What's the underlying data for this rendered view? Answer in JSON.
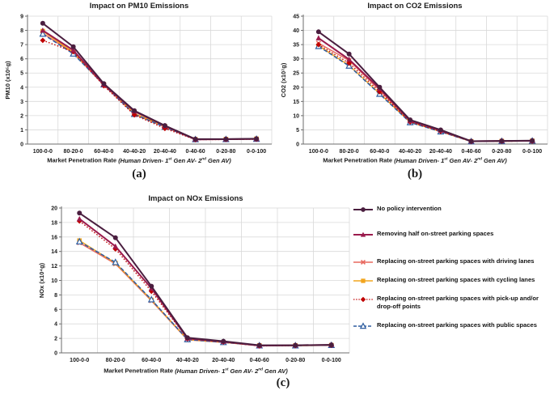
{
  "figure": {
    "captions": {
      "a": "(a)",
      "b": "(b)",
      "c": "(c)"
    }
  },
  "colors": {
    "grid": "#D9D9D9",
    "axis": "#6E6E6E",
    "text": "#1A1A1A",
    "no_policy": "#4A1E3F",
    "removing_half": "#9B1B4D",
    "driving_lanes": "#E8695F",
    "cycling_lanes": "#F2A51E",
    "pickup_dropoff": "#C00000",
    "public_spaces": "#2E5DA0"
  },
  "series_styles": {
    "no_policy": {
      "color": "#4A1E3F",
      "marker": "circle",
      "line": "solid",
      "width": 2.0
    },
    "removing_half": {
      "color": "#9B1B4D",
      "marker": "triangle",
      "line": "solid",
      "width": 2.0
    },
    "driving_lanes": {
      "color": "#E8695F",
      "marker": "x",
      "line": "solid",
      "width": 1.5
    },
    "cycling_lanes": {
      "color": "#F2A51E",
      "marker": "square",
      "line": "solid",
      "width": 1.5
    },
    "pickup_dropoff": {
      "color": "#C00000",
      "marker": "diamond",
      "line": "dotted",
      "width": 1.3
    },
    "public_spaces": {
      "color": "#2E5DA0",
      "marker": "triangle-open",
      "line": "dashed",
      "width": 1.5
    }
  },
  "legend": {
    "items": [
      {
        "key": "no_policy",
        "label": "No policy intervention"
      },
      {
        "key": "removing_half",
        "label": "Removing half on-street parking spaces"
      },
      {
        "key": "driving_lanes",
        "label": "Replacing on-street parking spaces with driving lanes"
      },
      {
        "key": "cycling_lanes",
        "label": "Replacing on-street parking spaces with cycling lanes"
      },
      {
        "key": "pickup_dropoff",
        "label": "Replacing on-street parking spaces with pick-up and/or drop-off points"
      },
      {
        "key": "public_spaces",
        "label": "Replacing on-street parking spaces with public spaces"
      }
    ]
  },
  "chart_data": [
    {
      "id": "a",
      "type": "line",
      "title": "Impact on PM10 Emissions",
      "xlabel": "Market Penetration Rate (Human Driven- 1st Gen AV- 2nd Gen AV)",
      "ylabel": "PM10 (x10⁵g)",
      "ylim": [
        0,
        9
      ],
      "ytick_step": 1,
      "grid": true,
      "categories": [
        "100-0-0",
        "80-20-0",
        "60-40-0",
        "40-40-20",
        "20-40-40",
        "0-40-60",
        "0-20-80",
        "0-0-100"
      ],
      "series": [
        {
          "key": "no_policy",
          "name": "No policy intervention",
          "values": [
            8.5,
            6.85,
            4.25,
            2.35,
            1.3,
            0.35,
            0.35,
            0.38
          ]
        },
        {
          "key": "removing_half",
          "name": "Removing half on-street parking spaces",
          "values": [
            8.0,
            6.6,
            4.2,
            2.3,
            1.28,
            0.33,
            0.34,
            0.36
          ]
        },
        {
          "key": "driving_lanes",
          "name": "Replacing on-street parking spaces with driving lanes",
          "values": [
            7.8,
            6.4,
            4.15,
            2.1,
            1.2,
            0.32,
            0.33,
            0.35
          ]
        },
        {
          "key": "cycling_lanes",
          "name": "Replacing on-street parking spaces with cycling lanes",
          "values": [
            7.95,
            6.45,
            4.2,
            2.15,
            1.25,
            0.33,
            0.34,
            0.37
          ]
        },
        {
          "key": "pickup_dropoff",
          "name": "Replacing on-street parking spaces with pick-up and/or drop-off points",
          "values": [
            7.3,
            6.5,
            4.1,
            2.05,
            1.1,
            0.31,
            0.32,
            0.34
          ]
        },
        {
          "key": "public_spaces",
          "name": "Replacing on-street parking spaces with public spaces",
          "values": [
            7.75,
            6.35,
            4.18,
            2.1,
            1.2,
            0.32,
            0.33,
            0.35
          ]
        }
      ]
    },
    {
      "id": "b",
      "type": "line",
      "title": "Impact on CO2 Emissions",
      "xlabel": "Market Penetration Rate (Human Driven- 1st Gen AV- 2nd Gen AV)",
      "ylabel": "CO2 (x10⁷g)",
      "ylim": [
        0,
        45
      ],
      "ytick_step": 5,
      "grid": true,
      "categories": [
        "100-0-0",
        "80-20-0",
        "60-40-0",
        "40-40-20",
        "20-40-40",
        "0-40-60",
        "0-20-80",
        "0-0-100"
      ],
      "series": [
        {
          "key": "no_policy",
          "name": "No policy intervention",
          "values": [
            39.5,
            31.7,
            20.0,
            8.5,
            5.0,
            1.0,
            1.1,
            1.2
          ]
        },
        {
          "key": "removing_half",
          "name": "Removing half on-street parking spaces",
          "values": [
            37.3,
            29.8,
            19.5,
            8.2,
            4.8,
            1.0,
            1.1,
            1.15
          ]
        },
        {
          "key": "driving_lanes",
          "name": "Replacing on-street parking spaces with driving lanes",
          "values": [
            35.5,
            29.4,
            19.0,
            7.9,
            4.5,
            0.95,
            1.05,
            1.1
          ]
        },
        {
          "key": "cycling_lanes",
          "name": "Replacing on-street parking spaces with cycling lanes",
          "values": [
            34.6,
            27.7,
            17.8,
            7.7,
            4.4,
            0.9,
            1.0,
            1.1
          ]
        },
        {
          "key": "pickup_dropoff",
          "name": "Replacing on-street parking spaces with pick-up and/or drop-off points",
          "values": [
            35.0,
            28.5,
            18.4,
            7.8,
            4.45,
            0.9,
            1.0,
            1.05
          ]
        },
        {
          "key": "public_spaces",
          "name": "Replacing on-street parking spaces with public spaces",
          "values": [
            34.4,
            27.5,
            17.6,
            7.6,
            4.35,
            0.9,
            1.0,
            1.1
          ]
        }
      ]
    },
    {
      "id": "c",
      "type": "line",
      "title": "Impact on NOx Emissions",
      "xlabel": "Market Penetration Rate (Human Driven- 1st Gen AV- 2nd Gen AV)",
      "ylabel": "NOx (x10⁴g)",
      "ylim": [
        0,
        20
      ],
      "ytick_step": 2,
      "grid": true,
      "categories": [
        "100-0-0",
        "80-20-0",
        "60-40-0",
        "40-40-20",
        "20-40-40",
        "0-40-60",
        "0-20-80",
        "0-0-100"
      ],
      "series": [
        {
          "key": "no_policy",
          "name": "No policy intervention",
          "values": [
            19.3,
            15.9,
            9.2,
            2.1,
            1.6,
            1.05,
            1.05,
            1.1
          ]
        },
        {
          "key": "removing_half",
          "name": "Removing half on-street parking spaces",
          "values": [
            18.5,
            14.7,
            8.9,
            2.0,
            1.55,
            1.0,
            1.05,
            1.1
          ]
        },
        {
          "key": "driving_lanes",
          "name": "Replacing on-street parking spaces with driving lanes",
          "values": [
            15.2,
            12.3,
            7.2,
            1.8,
            1.45,
            1.0,
            1.0,
            1.05
          ]
        },
        {
          "key": "cycling_lanes",
          "name": "Replacing on-street parking spaces with cycling lanes",
          "values": [
            15.5,
            12.4,
            7.3,
            1.85,
            1.45,
            1.0,
            1.0,
            1.05
          ]
        },
        {
          "key": "pickup_dropoff",
          "name": "Replacing on-street parking spaces with pick-up and/or drop-off points",
          "values": [
            18.2,
            14.35,
            8.5,
            1.95,
            1.5,
            0.95,
            1.0,
            1.05
          ]
        },
        {
          "key": "public_spaces",
          "name": "Replacing on-street parking spaces with public spaces",
          "values": [
            15.35,
            12.5,
            7.35,
            1.85,
            1.45,
            1.0,
            1.0,
            1.05
          ]
        }
      ]
    }
  ]
}
